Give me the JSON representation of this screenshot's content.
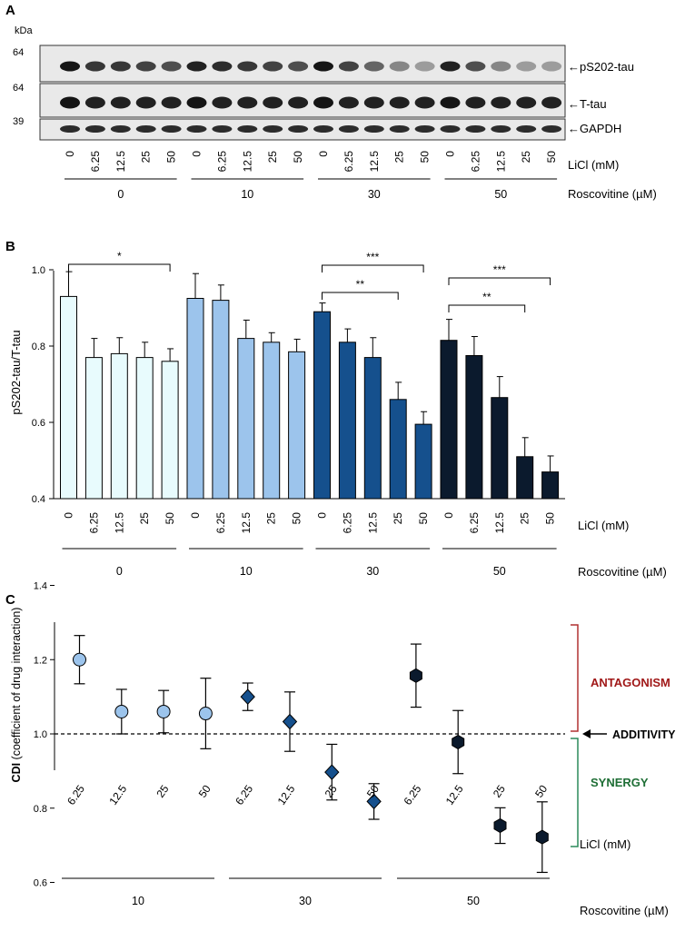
{
  "panel_a": {
    "label": "A",
    "kda_label": "kDa",
    "markers": [
      "64",
      "64",
      "39"
    ],
    "bands": [
      "pS202-tau",
      "T-tau",
      "GAPDH"
    ],
    "licl_label": "LiCl (mM)",
    "roscovitine_label": "Roscovitine (µM)",
    "lane_labels": [
      "0",
      "6.25",
      "12.5",
      "25",
      "50"
    ],
    "groups": [
      "0",
      "10",
      "30",
      "50"
    ],
    "intensity": {
      "pS202-tau": [
        [
          0.95,
          0.8,
          0.8,
          0.75,
          0.7
        ],
        [
          0.9,
          0.85,
          0.8,
          0.75,
          0.7
        ],
        [
          0.95,
          0.75,
          0.6,
          0.45,
          0.35
        ],
        [
          0.9,
          0.7,
          0.45,
          0.35,
          0.35
        ]
      ],
      "T-tau": [
        [
          0.95,
          0.9,
          0.9,
          0.9,
          0.9
        ],
        [
          0.95,
          0.9,
          0.9,
          0.9,
          0.9
        ],
        [
          0.95,
          0.9,
          0.9,
          0.9,
          0.9
        ],
        [
          0.95,
          0.9,
          0.9,
          0.9,
          0.9
        ]
      ],
      "GAPDH": [
        [
          0.85,
          0.85,
          0.85,
          0.85,
          0.85
        ],
        [
          0.85,
          0.85,
          0.85,
          0.85,
          0.85
        ],
        [
          0.85,
          0.85,
          0.85,
          0.85,
          0.85
        ],
        [
          0.85,
          0.85,
          0.85,
          0.85,
          0.85
        ]
      ]
    }
  },
  "panel_b": {
    "label": "B",
    "ylabel": "pS202-tau/T-tau",
    "yticks": [
      "0.4",
      "0.6",
      "0.8",
      "1.0"
    ],
    "licl_label": "LiCl (mM)",
    "roscovitine_label": "Roscovitine (µM)",
    "significance": [
      "*",
      "***",
      "**",
      "***",
      "**"
    ]
  },
  "panel_c": {
    "label": "C",
    "ylabel_bold": "CDI",
    "ylabel_rest": " (coefficient of drug interaction)",
    "yticks": [
      "0.6",
      "0.8",
      "1.0",
      "1.2",
      "1.4"
    ],
    "licl_label": "LiCl (mM)",
    "roscovitine_label": "Roscovitine (µM)",
    "antagonism": "ANTAGONISM",
    "additivity": "ADDITIVITY",
    "synergy": "SYNERGY"
  },
  "chart_data": [
    {
      "type": "bar",
      "title": "",
      "ylabel": "pS202-tau/T-tau",
      "xlabel": "LiCl (mM)",
      "group_label": "Roscovitine (µM)",
      "ylim": [
        0.4,
        1.05
      ],
      "categories": [
        "0",
        "6.25",
        "12.5",
        "25",
        "50"
      ],
      "series": [
        {
          "name": "0",
          "color": "#e8fbfd",
          "values": [
            0.93,
            0.77,
            0.78,
            0.77,
            0.76
          ],
          "errors": [
            0.065,
            0.05,
            0.042,
            0.04,
            0.033
          ]
        },
        {
          "name": "10",
          "color": "#9cc4ec",
          "values": [
            0.925,
            0.92,
            0.82,
            0.81,
            0.785
          ],
          "errors": [
            0.065,
            0.04,
            0.048,
            0.025,
            0.033
          ]
        },
        {
          "name": "30",
          "color": "#15508d",
          "values": [
            0.89,
            0.81,
            0.77,
            0.66,
            0.595
          ],
          "errors": [
            0.023,
            0.035,
            0.052,
            0.045,
            0.033
          ]
        },
        {
          "name": "50",
          "color": "#0b1a2d",
          "values": [
            0.815,
            0.775,
            0.665,
            0.51,
            0.47
          ],
          "errors": [
            0.055,
            0.05,
            0.055,
            0.05,
            0.042
          ]
        }
      ],
      "significance": [
        {
          "label": "*",
          "group": "0",
          "from": "0",
          "to": "50"
        },
        {
          "label": "***",
          "group": "30",
          "from": "0",
          "to": "50"
        },
        {
          "label": "**",
          "group": "30",
          "from": "0",
          "to": "25"
        },
        {
          "label": "***",
          "group": "50",
          "from": "0",
          "to": "50"
        },
        {
          "label": "**",
          "group": "50",
          "from": "0",
          "to": "25"
        }
      ]
    },
    {
      "type": "scatter",
      "title": "",
      "ylabel": "CDI (coefficient of drug interaction)",
      "xlabel": "LiCl (mM)",
      "group_label": "Roscovitine (µM)",
      "ylim": [
        0.6,
        1.4
      ],
      "reference_line": 1.0,
      "series": [
        {
          "name": "10",
          "marker": "circle",
          "color": "#9cc4ec",
          "x": [
            "6.25",
            "12.5",
            "25",
            "50"
          ],
          "values": [
            1.2,
            1.06,
            1.06,
            1.055
          ],
          "errors": [
            0.065,
            0.06,
            0.057,
            0.095
          ]
        },
        {
          "name": "30",
          "marker": "diamond",
          "color": "#15508d",
          "x": [
            "6.25",
            "12.5",
            "25",
            "50"
          ],
          "values": [
            1.1,
            1.033,
            0.897,
            0.818
          ],
          "errors": [
            0.037,
            0.08,
            0.075,
            0.048
          ]
        },
        {
          "name": "50",
          "marker": "hexagon",
          "color": "#0b1a2d",
          "x": [
            "6.25",
            "12.5",
            "25",
            "50"
          ],
          "values": [
            1.157,
            0.978,
            0.753,
            0.722
          ],
          "errors": [
            0.085,
            0.085,
            0.048,
            0.095
          ]
        }
      ],
      "annotations": [
        "ANTAGONISM",
        "ADDITIVITY",
        "SYNERGY"
      ]
    }
  ]
}
